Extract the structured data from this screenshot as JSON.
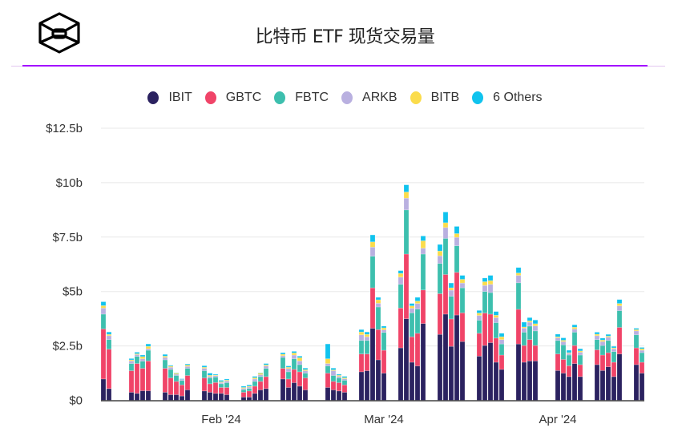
{
  "header": {
    "title": "比特币 ETF 现货交易量",
    "logo": "cube-logo"
  },
  "chart_data": {
    "type": "bar",
    "stacked": true,
    "title": "比特币 ETF 现货交易量",
    "xlabel": "",
    "ylabel": "",
    "ylim": [
      0,
      12.5
    ],
    "y_unit": "billion USD",
    "y_ticks": [
      "$0",
      "$2.5b",
      "$5b",
      "$7.5b",
      "$10b",
      "$12.5b"
    ],
    "y_tick_values": [
      0,
      2.5,
      5,
      7.5,
      10,
      12.5
    ],
    "x_ticks": [
      {
        "label": "Feb '24",
        "date": "2024-02-01"
      },
      {
        "label": "Mar '24",
        "date": "2024-03-01"
      },
      {
        "label": "Apr '24",
        "date": "2024-04-01"
      }
    ],
    "grid": true,
    "legend_position": "top",
    "categories": [
      "2024-01-11",
      "2024-01-12",
      "2024-01-16",
      "2024-01-17",
      "2024-01-18",
      "2024-01-19",
      "2024-01-22",
      "2024-01-23",
      "2024-01-24",
      "2024-01-25",
      "2024-01-26",
      "2024-01-29",
      "2024-01-30",
      "2024-01-31",
      "2024-02-01",
      "2024-02-02",
      "2024-02-05",
      "2024-02-06",
      "2024-02-07",
      "2024-02-08",
      "2024-02-09",
      "2024-02-12",
      "2024-02-13",
      "2024-02-14",
      "2024-02-15",
      "2024-02-16",
      "2024-02-20",
      "2024-02-21",
      "2024-02-22",
      "2024-02-23",
      "2024-02-26",
      "2024-02-27",
      "2024-02-28",
      "2024-02-29",
      "2024-03-01",
      "2024-03-04",
      "2024-03-05",
      "2024-03-06",
      "2024-03-07",
      "2024-03-08",
      "2024-03-11",
      "2024-03-12",
      "2024-03-13",
      "2024-03-14",
      "2024-03-15",
      "2024-03-18",
      "2024-03-19",
      "2024-03-20",
      "2024-03-21",
      "2024-03-22",
      "2024-03-25",
      "2024-03-26",
      "2024-03-27",
      "2024-03-28",
      "2024-04-01",
      "2024-04-02",
      "2024-04-03",
      "2024-04-04",
      "2024-04-05",
      "2024-04-08",
      "2024-04-09",
      "2024-04-10",
      "2024-04-11",
      "2024-04-12",
      "2024-04-15",
      "2024-04-16"
    ],
    "series": [
      {
        "name": "IBIT",
        "color": "#2b2260",
        "values": [
          0.98,
          0.54,
          0.37,
          0.32,
          0.44,
          0.44,
          0.37,
          0.26,
          0.26,
          0.2,
          0.48,
          0.43,
          0.37,
          0.32,
          0.32,
          0.26,
          0.15,
          0.15,
          0.32,
          0.48,
          0.54,
          0.98,
          0.59,
          0.81,
          0.65,
          0.48,
          0.59,
          0.48,
          0.43,
          0.37,
          1.31,
          1.36,
          3.31,
          1.86,
          1.25,
          2.41,
          3.75,
          1.75,
          1.58,
          3.53,
          3.03,
          3.96,
          2.48,
          3.92,
          2.7,
          2.03,
          2.52,
          2.65,
          1.75,
          1.42,
          2.59,
          1.75,
          1.81,
          1.81,
          1.37,
          1.25,
          1.09,
          1.69,
          1.09,
          1.64,
          1.37,
          1.54,
          1.09,
          2.13,
          1.64,
          1.25
        ]
      },
      {
        "name": "GBTC",
        "color": "#f04468",
        "values": [
          2.3,
          1.81,
          0.99,
          1.37,
          1.03,
          1.37,
          1.1,
          0.77,
          0.61,
          0.51,
          0.66,
          0.6,
          0.39,
          0.5,
          0.27,
          0.33,
          0.22,
          0.28,
          0.33,
          0.39,
          0.55,
          0.49,
          0.39,
          0.61,
          0.66,
          0.55,
          0.66,
          0.39,
          0.38,
          0.34,
          0.82,
          0.77,
          1.86,
          1.39,
          1.05,
          1.83,
          2.97,
          1.17,
          1.5,
          1.54,
          1.87,
          1.82,
          1.26,
          1.96,
          1.32,
          1.05,
          1.49,
          1.31,
          1.11,
          0.66,
          1.59,
          0.77,
          0.98,
          0.71,
          0.76,
          0.63,
          0.5,
          0.83,
          0.55,
          0.68,
          0.71,
          0.65,
          0.66,
          1.22,
          0.77,
          0.5
        ]
      },
      {
        "name": "FBTC",
        "color": "#3dbfae",
        "values": [
          0.68,
          0.44,
          0.33,
          0.33,
          0.33,
          0.49,
          0.39,
          0.39,
          0.27,
          0.2,
          0.33,
          0.33,
          0.27,
          0.25,
          0.17,
          0.22,
          0.12,
          0.11,
          0.22,
          0.22,
          0.38,
          0.5,
          0.33,
          0.49,
          0.33,
          0.22,
          0.33,
          0.27,
          0.22,
          0.21,
          0.62,
          0.62,
          1.45,
          1.04,
          0.82,
          1.09,
          2.03,
          1.1,
          1.11,
          1.65,
          1.39,
          1.66,
          1.04,
          1.22,
          1.15,
          0.6,
          0.99,
          0.99,
          0.71,
          0.51,
          1.22,
          0.61,
          0.62,
          0.67,
          0.62,
          0.67,
          0.49,
          0.61,
          0.44,
          0.47,
          0.44,
          0.56,
          0.49,
          0.77,
          0.6,
          0.44
        ]
      },
      {
        "name": "ARKB",
        "color": "#b9b0e0",
        "values": [
          0.28,
          0.18,
          0.12,
          0.08,
          0.11,
          0.07,
          0.11,
          0.1,
          0.06,
          0.05,
          0.09,
          0.11,
          0.07,
          0.06,
          0.06,
          0.08,
          0.06,
          0.07,
          0.11,
          0.09,
          0.11,
          0.08,
          0.15,
          0.17,
          0.17,
          0.11,
          0.11,
          0.22,
          0.07,
          0.07,
          0.26,
          0.17,
          0.42,
          0.17,
          0.12,
          0.33,
          0.54,
          0.21,
          0.26,
          0.27,
          0.35,
          0.5,
          0.28,
          0.39,
          0.22,
          0.22,
          0.28,
          0.38,
          0.23,
          0.2,
          0.34,
          0.19,
          0.18,
          0.23,
          0.12,
          0.15,
          0.08,
          0.15,
          0.13,
          0.18,
          0.18,
          0.15,
          0.13,
          0.22,
          0.18,
          0.11
        ]
      },
      {
        "name": "BITB",
        "color": "#fbdc4b",
        "values": [
          0.11,
          0.06,
          0.05,
          0.04,
          0.1,
          0.11,
          0.06,
          0.05,
          0.05,
          0.0,
          0.06,
          0.05,
          0.05,
          0.03,
          0.04,
          0.04,
          0.04,
          0.04,
          0.06,
          0.07,
          0.05,
          0.07,
          0.06,
          0.1,
          0.15,
          0.05,
          0.22,
          0.04,
          0.05,
          0.05,
          0.13,
          0.11,
          0.24,
          0.16,
          0.09,
          0.17,
          0.28,
          0.11,
          0.11,
          0.34,
          0.22,
          0.22,
          0.11,
          0.17,
          0.17,
          0.11,
          0.17,
          0.17,
          0.11,
          0.13,
          0.11,
          0.05,
          0.06,
          0.1,
          0.05,
          0.06,
          0.03,
          0.08,
          0.06,
          0.07,
          0.07,
          0.05,
          0.04,
          0.11,
          0.06,
          0.07
        ]
      },
      {
        "name": "6 Others",
        "color": "#10c3ee",
        "values": [
          0.18,
          0.11,
          0.06,
          0.07,
          0.07,
          0.11,
          0.08,
          0.04,
          0.02,
          0.03,
          0.05,
          0.07,
          0.1,
          0.04,
          0.06,
          0.05,
          0.06,
          0.06,
          0.06,
          0.02,
          0.06,
          0.07,
          0.06,
          0.07,
          0.07,
          0.07,
          0.68,
          0.08,
          0.05,
          0.06,
          0.11,
          0.11,
          0.32,
          0.11,
          0.08,
          0.13,
          0.33,
          0.11,
          0.17,
          0.22,
          0.3,
          0.49,
          0.22,
          0.33,
          0.18,
          0.12,
          0.17,
          0.24,
          0.17,
          0.16,
          0.25,
          0.22,
          0.15,
          0.17,
          0.12,
          0.11,
          0.11,
          0.11,
          0.1,
          0.09,
          0.09,
          0.08,
          0.07,
          0.18,
          0.06,
          0.06
        ]
      }
    ]
  }
}
